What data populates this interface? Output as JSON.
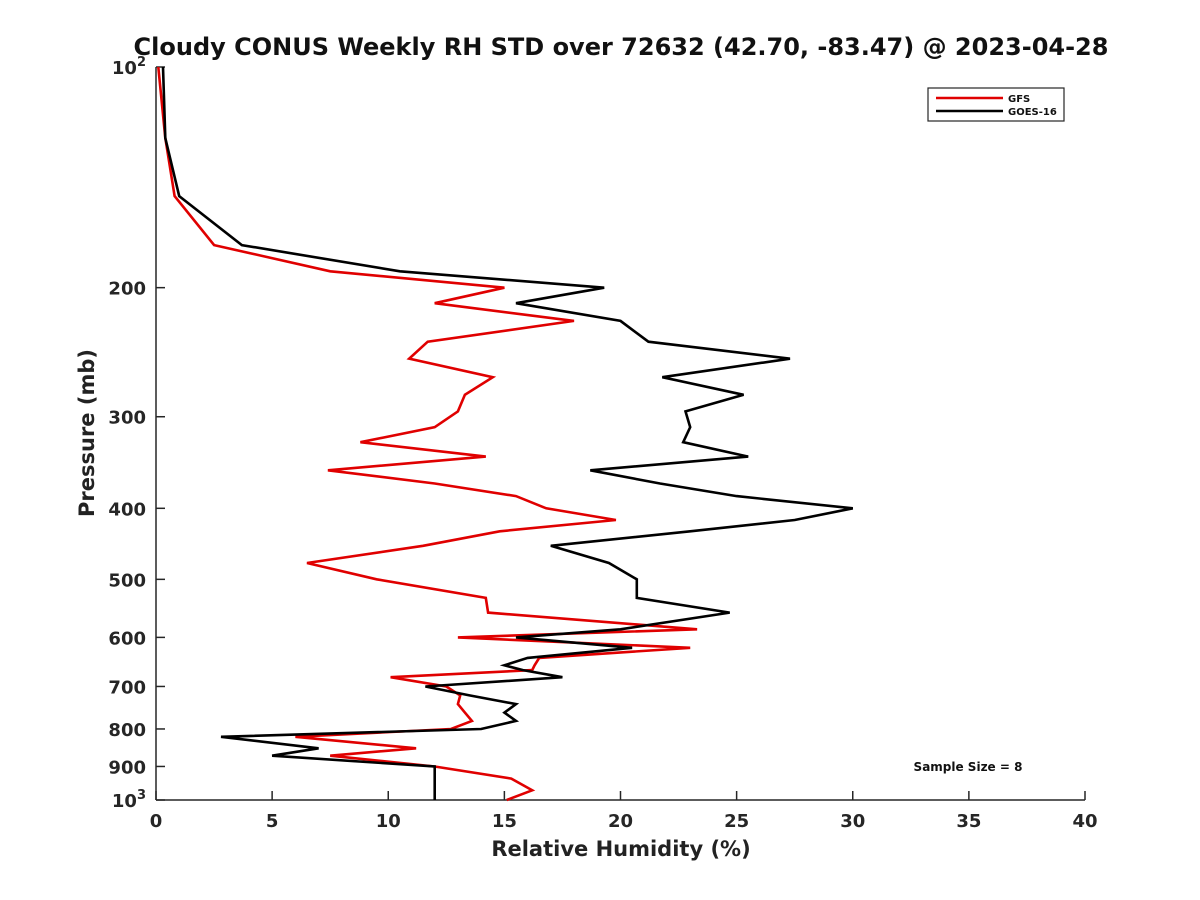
{
  "chart_data": {
    "type": "line",
    "title": "Cloudy CONUS Weekly RH STD over 72632 (42.70, -83.47) @ 2023-04-28",
    "xlabel": "Relative Humidity (%)",
    "ylabel": "Pressure (mb)",
    "xlim": [
      0,
      40
    ],
    "ylim": [
      100,
      1000
    ],
    "yscale": "log",
    "y_reversed": true,
    "x_ticks": [
      0,
      5,
      10,
      15,
      20,
      25,
      30,
      35,
      40
    ],
    "y_ticks": [
      {
        "value": 100,
        "label": "10",
        "sup": "2"
      },
      {
        "value": 200,
        "label": "200"
      },
      {
        "value": 300,
        "label": "300"
      },
      {
        "value": 400,
        "label": "400"
      },
      {
        "value": 500,
        "label": "500"
      },
      {
        "value": 600,
        "label": "600"
      },
      {
        "value": 700,
        "label": "700"
      },
      {
        "value": 800,
        "label": "800"
      },
      {
        "value": 900,
        "label": "900"
      },
      {
        "value": 1000,
        "label": "10",
        "sup": "3"
      }
    ],
    "grid": false,
    "legend_position": "top-right",
    "annotation": "Sample Size = 8",
    "series": [
      {
        "name": "GFS",
        "color": "#e00000",
        "points": [
          [
            0.1,
            100
          ],
          [
            0.4,
            125
          ],
          [
            0.8,
            150
          ],
          [
            2.5,
            175
          ],
          [
            7.5,
            190
          ],
          [
            15.0,
            200
          ],
          [
            12.0,
            210
          ],
          [
            18.0,
            222
          ],
          [
            11.7,
            237
          ],
          [
            10.9,
            250
          ],
          [
            14.5,
            265
          ],
          [
            13.3,
            280
          ],
          [
            13.0,
            295
          ],
          [
            12.0,
            310
          ],
          [
            8.8,
            325
          ],
          [
            14.2,
            340
          ],
          [
            7.4,
            355
          ],
          [
            12.0,
            370
          ],
          [
            15.5,
            385
          ],
          [
            16.8,
            400
          ],
          [
            19.8,
            415
          ],
          [
            14.8,
            430
          ],
          [
            11.5,
            450
          ],
          [
            6.5,
            475
          ],
          [
            9.5,
            500
          ],
          [
            14.2,
            530
          ],
          [
            14.3,
            555
          ],
          [
            23.3,
            585
          ],
          [
            13.0,
            600
          ],
          [
            23.0,
            620
          ],
          [
            16.5,
            640
          ],
          [
            16.3,
            655
          ],
          [
            16.2,
            665
          ],
          [
            10.1,
            680
          ],
          [
            12.5,
            700
          ],
          [
            13.1,
            720
          ],
          [
            13.0,
            740
          ],
          [
            13.3,
            760
          ],
          [
            13.6,
            780
          ],
          [
            12.7,
            800
          ],
          [
            6.0,
            820
          ],
          [
            11.2,
            850
          ],
          [
            7.5,
            870
          ],
          [
            12.0,
            900
          ],
          [
            15.3,
            935
          ],
          [
            16.2,
            970
          ],
          [
            15.1,
            1000
          ]
        ]
      },
      {
        "name": "GOES-16",
        "color": "#000000",
        "points": [
          [
            0.3,
            100
          ],
          [
            0.4,
            125
          ],
          [
            1.0,
            150
          ],
          [
            3.7,
            175
          ],
          [
            10.5,
            190
          ],
          [
            19.3,
            200
          ],
          [
            15.5,
            210
          ],
          [
            20.0,
            222
          ],
          [
            21.2,
            237
          ],
          [
            27.3,
            250
          ],
          [
            21.8,
            265
          ],
          [
            25.3,
            280
          ],
          [
            22.8,
            295
          ],
          [
            23.0,
            310
          ],
          [
            22.7,
            325
          ],
          [
            25.5,
            340
          ],
          [
            18.7,
            355
          ],
          [
            21.7,
            370
          ],
          [
            25.0,
            385
          ],
          [
            30.0,
            400
          ],
          [
            27.5,
            415
          ],
          [
            23.0,
            430
          ],
          [
            17.0,
            450
          ],
          [
            19.5,
            475
          ],
          [
            20.7,
            500
          ],
          [
            20.7,
            530
          ],
          [
            24.7,
            555
          ],
          [
            20.0,
            585
          ],
          [
            15.5,
            600
          ],
          [
            20.5,
            620
          ],
          [
            16.0,
            640
          ],
          [
            15.0,
            655
          ],
          [
            15.8,
            665
          ],
          [
            17.5,
            680
          ],
          [
            11.6,
            700
          ],
          [
            13.5,
            720
          ],
          [
            15.5,
            740
          ],
          [
            15.0,
            760
          ],
          [
            15.5,
            780
          ],
          [
            14.0,
            800
          ],
          [
            2.8,
            820
          ],
          [
            7.0,
            850
          ],
          [
            5.0,
            870
          ],
          [
            12.0,
            900
          ],
          [
            12.0,
            935
          ],
          [
            12.0,
            970
          ],
          [
            12.0,
            1000
          ]
        ]
      }
    ]
  }
}
